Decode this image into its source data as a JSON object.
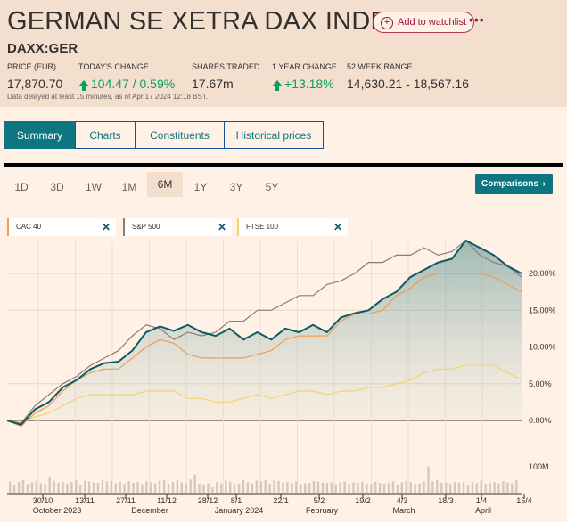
{
  "header": {
    "title": "GERMAN SE XETRA DAX INDEX",
    "watchlist_label": "Add to watchlist",
    "more_label": "•••",
    "ticker": "DAXX:GER",
    "stats": [
      {
        "label": "PRICE (EUR)",
        "value": "17,870.70"
      },
      {
        "label": "TODAY'S CHANGE",
        "value": "104.47 / 0.59%"
      },
      {
        "label": "SHARES TRADED",
        "value": "17.67m"
      },
      {
        "label": "1 YEAR CHANGE",
        "value": "+13.18%"
      },
      {
        "label": "52 WEEK RANGE",
        "value": "14,630.21 - 18,567.16"
      }
    ],
    "delay_note": "Data delayed at least 15 minutes, as of Apr 17 2024 12:18 BST."
  },
  "tabs": [
    "Summary",
    "Charts",
    "Constituents",
    "Historical prices"
  ],
  "active_tab": "Summary",
  "ranges": [
    "1D",
    "3D",
    "1W",
    "1M",
    "6M",
    "1Y",
    "3Y",
    "5Y"
  ],
  "active_range": "6M",
  "comparisons_label": "Comparisons",
  "comparison_chips": [
    {
      "name": "CAC 40",
      "color": "#f29d4f"
    },
    {
      "name": "S&P 500",
      "color": "#8a7d74"
    },
    {
      "name": "FTSE 100",
      "color": "#f5d46c"
    }
  ],
  "chart_data": {
    "type": "line",
    "y_unit": "%",
    "ylim": [
      -3,
      25
    ],
    "y_ticks": [
      "20.00%",
      "15.00%",
      "10.00%",
      "5.00%",
      "0.00%"
    ],
    "volume_label": "100M",
    "x_day_ticks": [
      "30/10",
      "13/11",
      "27/11",
      "11/12",
      "28/12",
      "8/1",
      "22/1",
      "5/2",
      "19/2",
      "4/3",
      "18/3",
      "1/4",
      "15/4"
    ],
    "x_month_labels": [
      "October 2023",
      "December",
      "January 2024",
      "February",
      "March",
      "April"
    ],
    "grid": true,
    "series": [
      {
        "name": "DAXX:GER",
        "color": "#0d5b66",
        "values": [
          0.0,
          -0.6,
          1.5,
          2.5,
          4.5,
          5.5,
          7.0,
          7.8,
          8.0,
          9.5,
          12.0,
          12.8,
          12.2,
          13.0,
          12.0,
          11.5,
          12.5,
          11.0,
          12.0,
          11.0,
          12.5,
          12.0,
          13.0,
          12.0,
          14.0,
          14.6,
          15.0,
          16.5,
          17.5,
          19.5,
          20.5,
          21.5,
          22.0,
          24.5,
          23.5,
          22.5,
          21.0,
          20.0
        ]
      },
      {
        "name": "S&P 500",
        "color": "#8a7d74",
        "values": [
          0.0,
          -0.4,
          2.0,
          3.5,
          5.0,
          6.0,
          7.5,
          8.5,
          9.5,
          11.5,
          13.0,
          12.5,
          11.0,
          12.0,
          11.5,
          12.0,
          13.5,
          13.5,
          15.0,
          15.0,
          16.0,
          17.0,
          17.0,
          18.5,
          19.0,
          20.0,
          21.5,
          21.5,
          22.5,
          22.5,
          23.5,
          22.5,
          23.0,
          24.5,
          22.5,
          21.5,
          21.0,
          19.5
        ]
      },
      {
        "name": "CAC 40",
        "color": "#f29d4f",
        "values": [
          0.0,
          -0.8,
          1.0,
          2.0,
          4.0,
          5.5,
          6.5,
          7.0,
          7.0,
          8.5,
          10.0,
          11.0,
          10.5,
          9.0,
          8.5,
          8.5,
          8.5,
          8.5,
          9.0,
          9.5,
          11.0,
          11.5,
          11.5,
          11.5,
          13.5,
          14.5,
          14.5,
          15.0,
          17.0,
          18.0,
          19.5,
          20.0,
          20.0,
          20.0,
          20.0,
          19.5,
          18.5,
          17.5
        ]
      },
      {
        "name": "FTSE 100",
        "color": "#f5d46c",
        "values": [
          0.0,
          -0.3,
          0.5,
          1.0,
          2.0,
          3.0,
          3.5,
          3.5,
          3.5,
          3.5,
          4.0,
          4.0,
          4.0,
          3.0,
          3.0,
          2.5,
          2.5,
          3.0,
          3.5,
          3.0,
          3.5,
          4.0,
          4.0,
          3.5,
          4.0,
          4.0,
          4.5,
          4.5,
          5.0,
          5.5,
          6.5,
          7.0,
          7.0,
          7.5,
          7.5,
          7.5,
          6.5,
          5.5
        ]
      }
    ],
    "volume": [
      36,
      26,
      34,
      40,
      28,
      33,
      37,
      30,
      29,
      48,
      38,
      32,
      35,
      29,
      34,
      40,
      26,
      38,
      36,
      33,
      31,
      41,
      36,
      38,
      31,
      35,
      29,
      37,
      31,
      34,
      27,
      36,
      33,
      30,
      38,
      40,
      29,
      34,
      39,
      33,
      30,
      42,
      58,
      29,
      24,
      30,
      17,
      34,
      30,
      39,
      35,
      27,
      29,
      40,
      34,
      30,
      38,
      36,
      40,
      29,
      39,
      37,
      32,
      34,
      31,
      36,
      28,
      30,
      31,
      37,
      35,
      32,
      31,
      33,
      27,
      34,
      36,
      27,
      32,
      31,
      34,
      29,
      27,
      35,
      31,
      29,
      30,
      36,
      25,
      33,
      38,
      34,
      28,
      29,
      36,
      84,
      36,
      40,
      31,
      33,
      29,
      34,
      32,
      34,
      25,
      35,
      31,
      38,
      29,
      32,
      34,
      30,
      37,
      33,
      30,
      40
    ]
  }
}
